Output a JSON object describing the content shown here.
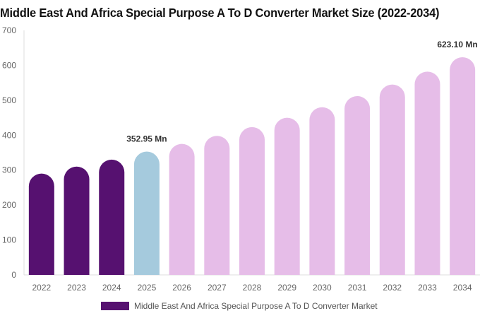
{
  "title": "Middle East And Africa Special Purpose A To D Converter Market Size (2022-2034)",
  "chart_data": {
    "type": "bar",
    "title": "Middle East And Africa Special Purpose A To D Converter Market Size (2022-2034)",
    "categories": [
      "2022",
      "2023",
      "2024",
      "2025",
      "2026",
      "2027",
      "2028",
      "2029",
      "2030",
      "2031",
      "2032",
      "2033",
      "2034"
    ],
    "series": [
      {
        "name": "Middle East And Africa Special Purpose A To D Converter Market",
        "values": [
          290,
          310,
          330,
          352.95,
          375,
          398,
          423,
          450,
          480,
          512,
          545,
          582,
          623.1
        ]
      }
    ],
    "ylim": [
      0,
      700
    ],
    "yticks": [
      0,
      100,
      200,
      300,
      400,
      500,
      600,
      700
    ],
    "annotations": [
      {
        "category": "2025",
        "text": "352.95 Mn"
      },
      {
        "category": "2034",
        "text": "623.10 Mn"
      }
    ],
    "bar_colors": {
      "historical": "#561170",
      "current": "#a5cadd",
      "forecast": "#e6bde8"
    },
    "color_groups": [
      "historical",
      "historical",
      "historical",
      "current",
      "forecast",
      "forecast",
      "forecast",
      "forecast",
      "forecast",
      "forecast",
      "forecast",
      "forecast",
      "forecast"
    ],
    "grid": false,
    "legend_position": "bottom"
  }
}
